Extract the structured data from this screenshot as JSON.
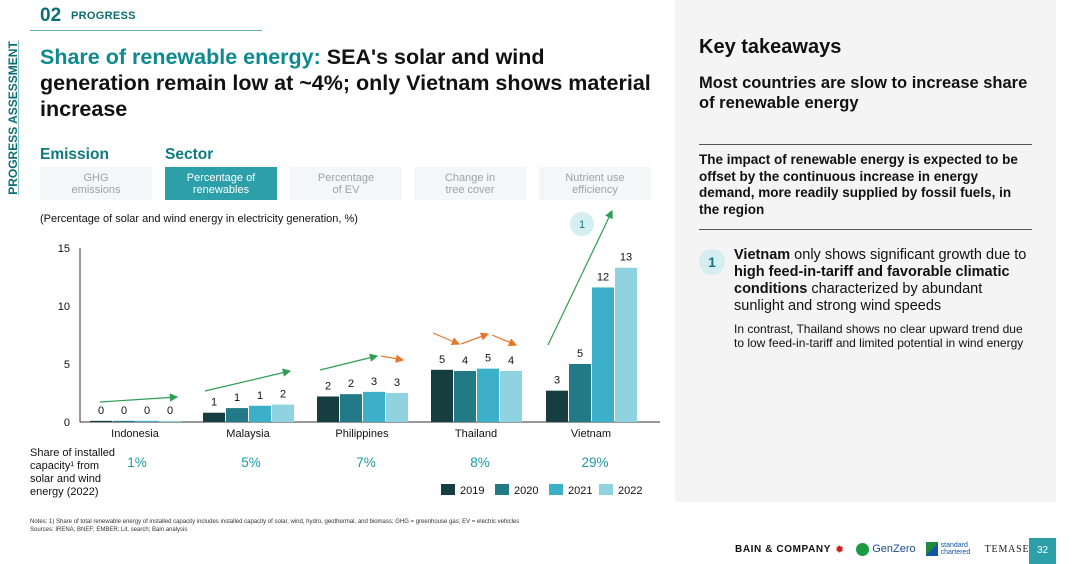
{
  "header": {
    "section_number": "02",
    "section_label": "PROGRESS",
    "side_label": "PROGRESS ASSESSMENT"
  },
  "headline": {
    "highlight": "Share of renewable energy:",
    "rest": " SEA's solar and wind generation remain low at ~4%; only Vietnam shows material increase"
  },
  "filters": {
    "emission_label": "Emission",
    "sector_label": "Sector",
    "tabs": [
      {
        "line1": "GHG",
        "line2": "emissions",
        "active": false
      },
      {
        "line1": "Percentage of",
        "line2": "renewables",
        "active": true
      },
      {
        "line1": "Percentage",
        "line2": "of EV",
        "active": false
      },
      {
        "line1": "Change in",
        "line2": "tree cover",
        "active": false
      },
      {
        "line1": "Nutrient use",
        "line2": "efficiency",
        "active": false
      }
    ]
  },
  "chart_subtitle": "(Percentage of solar and wind energy in electricity generation, %)",
  "chart_data": {
    "type": "bar",
    "ylabel": "Percentage of solar and wind energy in electricity generation, %",
    "ylim": [
      0,
      15
    ],
    "yticks": [
      0,
      5,
      10,
      15
    ],
    "categories": [
      "Indonesia",
      "Malaysia",
      "Philippines",
      "Thailand",
      "Vietnam"
    ],
    "series": [
      {
        "name": "2019",
        "color": "#163d40",
        "values": [
          0.1,
          0.8,
          2.2,
          4.5,
          2.7
        ]
      },
      {
        "name": "2020",
        "color": "#227a86",
        "values": [
          0.1,
          1.2,
          2.4,
          4.4,
          5.0
        ]
      },
      {
        "name": "2021",
        "color": "#3cb0c8",
        "values": [
          0.1,
          1.4,
          2.6,
          4.6,
          11.6
        ]
      },
      {
        "name": "2022",
        "color": "#8fd3e0",
        "values": [
          0.1,
          1.5,
          2.5,
          4.4,
          13.3
        ]
      }
    ],
    "labels": [
      [
        "0",
        "0",
        "0",
        "0"
      ],
      [
        "1",
        "1",
        "1",
        "2"
      ],
      [
        "2",
        "2",
        "3",
        "3"
      ],
      [
        "5",
        "4",
        "5",
        "4"
      ],
      [
        "3",
        "5",
        "12",
        "13"
      ]
    ],
    "legend": [
      "2019",
      "2020",
      "2021",
      "2022"
    ],
    "trend_colors": {
      "up": "#2e9e52",
      "flat": "#e5762b"
    },
    "callout": "1"
  },
  "capacity": {
    "label_lines": [
      "Share of installed",
      "capacity¹ from",
      "solar and wind",
      "energy (2022)"
    ],
    "values": [
      "1%",
      "5%",
      "7%",
      "8%",
      "29%"
    ]
  },
  "footnotes": {
    "notes": "Notes: 1) Share of total renewable energy of installed capacity includes installed capacity of solar, wind, hydro, geothermal, and biomass; GHG = greenhouse gas; EV = electric vehicles",
    "sources": "Sources: IRENA; BNEF; EMBER; Lit. search; Bain analysis"
  },
  "key_takeaways": {
    "title": "Key takeaways",
    "subtitle": "Most countries are slow to increase share of renewable energy",
    "impact": "The impact of renewable energy is expected to be offset by the continuous increase in energy demand, more readily supplied by fossil fuels, in the region",
    "badge": "1",
    "point_country": "Vietnam",
    "point_pre": " only shows significant growth due to ",
    "point_bold": "high feed-in-tariff and favorable climatic conditions",
    "point_post": " characterized by abundant sunlight and strong wind speeds",
    "contrast": "In contrast, Thailand shows no clear upward trend due to low feed-in-tariff and limited potential in wind energy"
  },
  "footer": {
    "bain": "BAIN & COMPANY",
    "genzero": "GenZero",
    "standard_chartered": "standard chartered",
    "temasek": "TEMASEK",
    "page_number": "32"
  }
}
